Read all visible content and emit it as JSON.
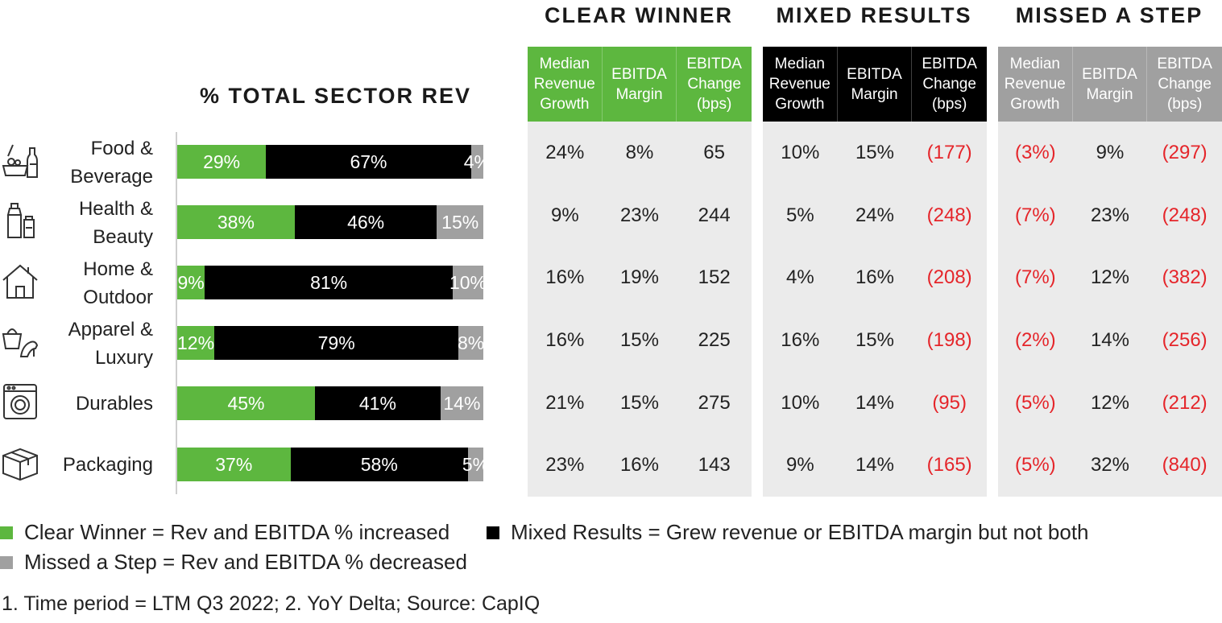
{
  "chart_data": {
    "type": "bar",
    "stacked": true,
    "orientation": "horizontal",
    "title": "% TOTAL SECTOR REV",
    "categories": [
      "Food &\nBeverage",
      "Health &\nBeauty",
      "Home &\nOutdoor",
      "Apparel &\nLuxury",
      "Durables",
      "Packaging"
    ],
    "series": [
      {
        "name": "Clear Winner",
        "color": "#5db73f",
        "values": [
          29,
          38,
          9,
          12,
          45,
          37
        ]
      },
      {
        "name": "Mixed Results",
        "color": "#000000",
        "values": [
          67,
          46,
          81,
          79,
          41,
          58
        ]
      },
      {
        "name": "Missed a Step",
        "color": "#a0a0a0",
        "values": [
          4,
          15,
          10,
          8,
          14,
          5
        ]
      }
    ],
    "value_suffix": "%"
  },
  "icons": [
    "food-beverage-icon",
    "health-beauty-icon",
    "home-outdoor-icon",
    "apparel-luxury-icon",
    "durables-icon",
    "packaging-icon"
  ],
  "table": {
    "groups": [
      {
        "title": "CLEAR WINNER",
        "color": "#5db73f",
        "columns": [
          "Median\nRevenue\nGrowth",
          "EBITDA\nMargin",
          "EBITDA\nChange\n(bps)"
        ],
        "rows": [
          [
            "24%",
            "8%",
            "65"
          ],
          [
            "9%",
            "23%",
            "244"
          ],
          [
            "16%",
            "19%",
            "152"
          ],
          [
            "16%",
            "15%",
            "225"
          ],
          [
            "21%",
            "15%",
            "275"
          ],
          [
            "23%",
            "16%",
            "143"
          ]
        ]
      },
      {
        "title": "MIXED RESULTS",
        "color": "#000000",
        "columns": [
          "Median\nRevenue\nGrowth",
          "EBITDA\nMargin",
          "EBITDA\nChange\n(bps)"
        ],
        "rows": [
          [
            "10%",
            "15%",
            "(177)"
          ],
          [
            "5%",
            "24%",
            "(248)"
          ],
          [
            "4%",
            "16%",
            "(208)"
          ],
          [
            "16%",
            "15%",
            "(198)"
          ],
          [
            "10%",
            "14%",
            "(95)"
          ],
          [
            "9%",
            "14%",
            "(165)"
          ]
        ]
      },
      {
        "title": "MISSED A STEP",
        "color": "#a0a0a0",
        "columns": [
          "Median\nRevenue\nGrowth",
          "EBITDA\nMargin",
          "EBITDA\nChange\n(bps)"
        ],
        "rows": [
          [
            "(3%)",
            "9%",
            "(297)"
          ],
          [
            "(7%)",
            "23%",
            "(248)"
          ],
          [
            "(7%)",
            "12%",
            "(382)"
          ],
          [
            "(2%)",
            "14%",
            "(256)"
          ],
          [
            "(5%)",
            "12%",
            "(212)"
          ],
          [
            "(5%)",
            "32%",
            "(840)"
          ]
        ]
      }
    ]
  },
  "legend": [
    {
      "label": "Clear Winner = Rev and EBITDA % increased",
      "color": "#5db73f"
    },
    {
      "label": "Mixed Results = Grew revenue or EBITDA margin but not both",
      "color": "#000000"
    },
    {
      "label": "Missed a Step = Rev and EBITDA % decreased",
      "color": "#a0a0a0"
    }
  ],
  "footnote": "1. Time period =  LTM Q3 2022; 2. YoY Delta; Source: CapIQ",
  "colors": {
    "negative": "#e5252a"
  }
}
